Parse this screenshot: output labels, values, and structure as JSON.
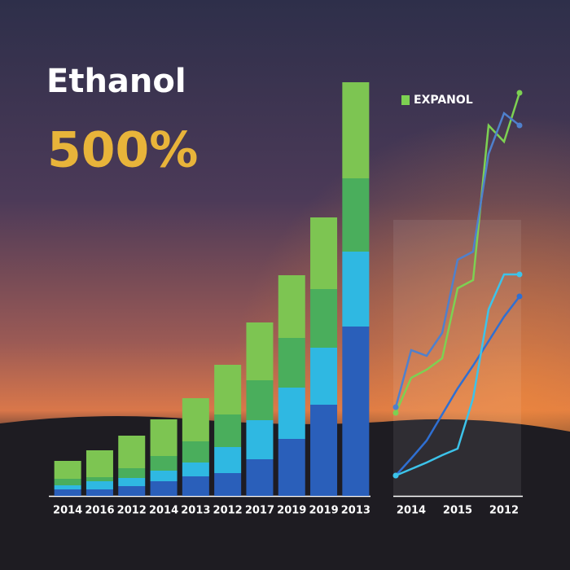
{
  "chart_data": [
    {
      "type": "bar",
      "stacked": true,
      "title": "Ethanol",
      "subtitle": "500%",
      "categories": [
        "2014",
        "2016",
        "2012",
        "2014",
        "2013",
        "2012",
        "2017",
        "2019",
        "2019",
        "2013"
      ],
      "series": [
        {
          "color": "#2a5fba",
          "values": [
            8,
            8,
            12,
            18,
            24,
            28,
            45,
            70,
            112,
            208
          ]
        },
        {
          "color": "#2fb8e2",
          "values": [
            5,
            10,
            10,
            13,
            17,
            32,
            48,
            63,
            70,
            92
          ]
        },
        {
          "color": "#4aae5c",
          "values": [
            8,
            5,
            12,
            18,
            26,
            40,
            49,
            61,
            72,
            90
          ]
        },
        {
          "color": "#7dc552",
          "values": [
            22,
            33,
            40,
            45,
            53,
            61,
            71,
            77,
            88,
            118
          ]
        }
      ],
      "ylim": [
        0,
        520
      ]
    },
    {
      "type": "line",
      "categories": [
        null,
        "2014",
        null,
        null,
        "2015",
        null,
        null,
        "2012",
        null
      ],
      "series": [
        {
          "name": "EXPANOL",
          "color": "#7dd152",
          "values": [
            102,
            145,
            155,
            169,
            255,
            265,
            455,
            435,
            495
          ]
        },
        {
          "color": "#4f80cc",
          "values": [
            109,
            179,
            172,
            200,
            290,
            300,
            420,
            470,
            455
          ]
        },
        {
          "color": "#2f6fd2",
          "values": [
            25,
            46,
            68,
            100,
            132,
            160,
            190,
            220,
            245
          ]
        },
        {
          "color": "#3cc3ea",
          "values": [
            25,
            33,
            41,
            50,
            58,
            120,
            229,
            272,
            272
          ]
        }
      ],
      "legend": "top-left",
      "ylim": [
        0,
        520
      ]
    }
  ]
}
